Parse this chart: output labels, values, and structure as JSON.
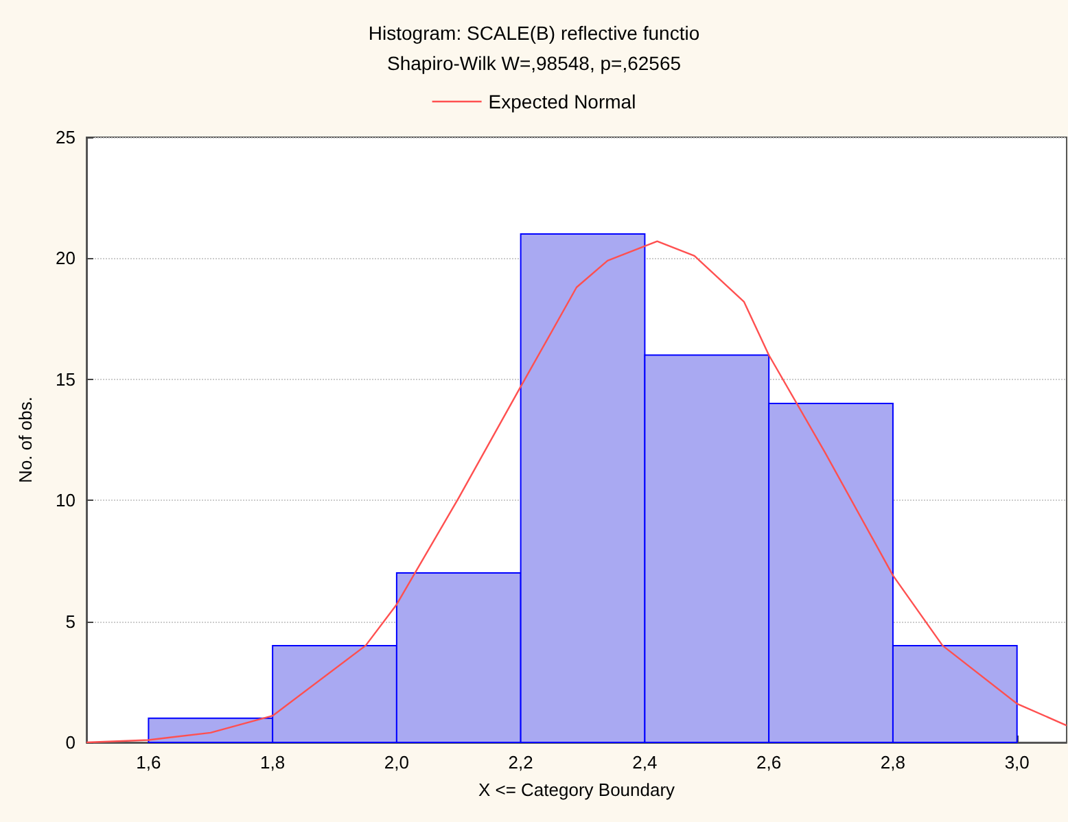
{
  "chart_data": {
    "type": "histogram",
    "title": "Histogram: SCALE(B) reflective functio",
    "subtitle": "Shapiro-Wilk W=,98548, p=,62565",
    "xlabel": "X <= Category Boundary",
    "ylabel": "No. of obs.",
    "bins": [
      1.6,
      1.8,
      2.0,
      2.2,
      2.4,
      2.6,
      2.8,
      3.0
    ],
    "values": [
      1,
      4,
      7,
      21,
      16,
      14,
      4
    ],
    "color": "#a9a9f2",
    "series": [
      {
        "name": "Expected Normal",
        "type": "line",
        "color": "#ff5050",
        "x": [
          1.5,
          1.6,
          1.7,
          1.8,
          1.95,
          2.0,
          2.1,
          2.2,
          2.244,
          2.29,
          2.34,
          2.42,
          2.48,
          2.56,
          2.6,
          2.69,
          2.8,
          2.88,
          3.0,
          3.08
        ],
        "values": [
          0,
          0.1,
          0.4,
          1.1,
          4.0,
          5.7,
          10.1,
          14.7,
          16.7,
          18.8,
          19.9,
          20.7,
          20.1,
          18.2,
          16.0,
          12.0,
          6.9,
          4.0,
          1.6,
          0.7
        ]
      }
    ],
    "xlim": [
      1.5,
      3.08
    ],
    "xticks": [
      {
        "value": 1.6,
        "label": "1,6"
      },
      {
        "value": 1.8,
        "label": "1,8"
      },
      {
        "value": 2.0,
        "label": "2,0"
      },
      {
        "value": 2.2,
        "label": "2,2"
      },
      {
        "value": 2.4,
        "label": "2,4"
      },
      {
        "value": 2.6,
        "label": "2,6"
      },
      {
        "value": 2.8,
        "label": "2,8"
      },
      {
        "value": 3.0,
        "label": "3,0"
      }
    ],
    "ylim": [
      0,
      25
    ],
    "yticks": [
      0,
      5,
      10,
      15,
      20,
      25
    ],
    "grid": "y",
    "legend": "top",
    "marker": "none",
    "line_style": "solid"
  }
}
